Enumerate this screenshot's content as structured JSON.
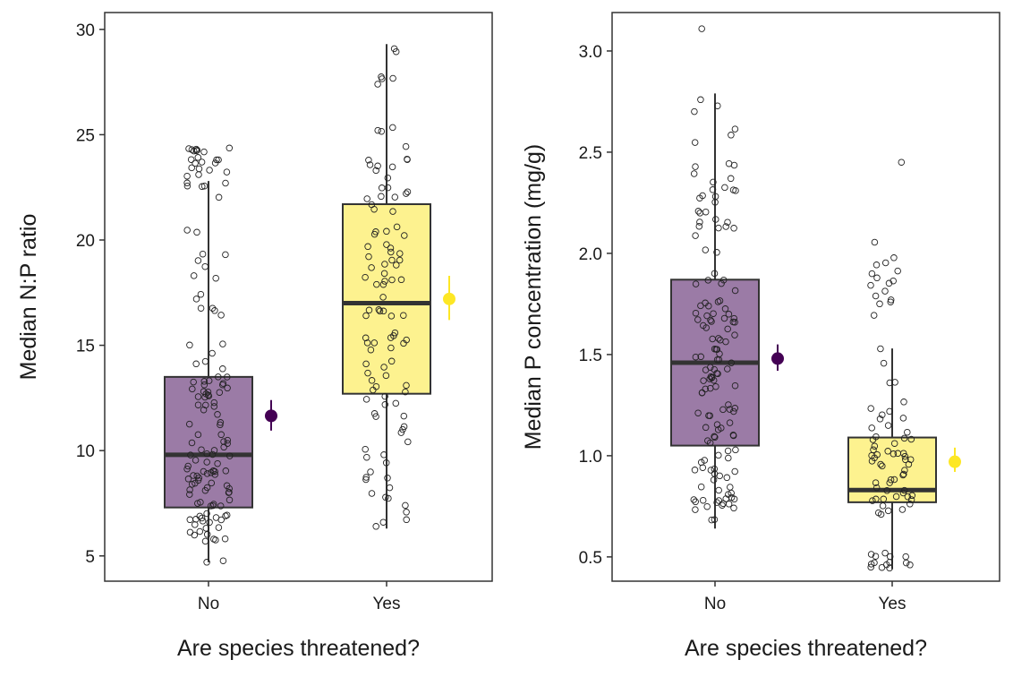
{
  "chart_data": [
    {
      "type": "box",
      "xlabel": "Are species threatened?",
      "ylabel": "Median N:P ratio",
      "ylim": [
        3.8,
        30.8
      ],
      "yticks": [
        5,
        10,
        15,
        20,
        25,
        30
      ],
      "categories": [
        "No",
        "Yes"
      ],
      "groups": [
        {
          "category": "No",
          "color": "#9b7ba6",
          "box": {
            "q1": 7.3,
            "median": 9.8,
            "q3": 13.5,
            "whisker_low": 4.7,
            "whisker_high": 22.8
          },
          "mean": 11.65,
          "ci": [
            10.95,
            12.4
          ],
          "mean_color": "#440154",
          "points": [
            {
              "n": 22,
              "min": 5.6,
              "max": 7.2
            },
            {
              "n": 38,
              "min": 7.3,
              "max": 9.8
            },
            {
              "n": 38,
              "min": 9.8,
              "max": 13.5
            },
            {
              "n": 14,
              "min": 13.5,
              "max": 18.5
            },
            {
              "n": 9,
              "min": 18.5,
              "max": 22.8
            },
            {
              "n": 24,
              "min": 22.5,
              "max": 24.4
            },
            {
              "n": 2,
              "min": 4.7,
              "max": 5.8
            }
          ]
        },
        {
          "category": "Yes",
          "color": "#fdf28f",
          "box": {
            "q1": 12.7,
            "median": 17.0,
            "q3": 21.7,
            "whisker_low": 6.3,
            "whisker_high": 29.3
          },
          "mean": 17.2,
          "ci": [
            16.2,
            18.3
          ],
          "mean_color": "#fde725",
          "points": [
            {
              "n": 14,
              "min": 6.3,
              "max": 9.5
            },
            {
              "n": 14,
              "min": 9.5,
              "max": 12.7
            },
            {
              "n": 27,
              "min": 12.7,
              "max": 17.0
            },
            {
              "n": 27,
              "min": 17.0,
              "max": 21.7
            },
            {
              "n": 16,
              "min": 21.7,
              "max": 24.7
            },
            {
              "n": 3,
              "min": 25.0,
              "max": 25.5
            },
            {
              "n": 6,
              "min": 27.3,
              "max": 29.3
            }
          ]
        }
      ]
    },
    {
      "type": "box",
      "xlabel": "Are species threatened?",
      "ylabel": "Median P concentration (mg/g)",
      "ylim": [
        0.38,
        3.19
      ],
      "yticks": [
        0.5,
        1.0,
        1.5,
        2.0,
        2.5,
        3.0
      ],
      "ytick_labels": [
        "0.5",
        "1.0",
        "1.5",
        "2.0",
        "2.5",
        "3.0"
      ],
      "categories": [
        "No",
        "Yes"
      ],
      "groups": [
        {
          "category": "No",
          "color": "#9b7ba6",
          "box": {
            "q1": 1.05,
            "median": 1.46,
            "q3": 1.87,
            "whisker_low": 0.64,
            "whisker_high": 2.79
          },
          "mean": 1.48,
          "ci": [
            1.42,
            1.55
          ],
          "mean_color": "#440154",
          "points": [
            {
              "n": 14,
              "min": 0.73,
              "max": 0.8
            },
            {
              "n": 20,
              "min": 0.8,
              "max": 1.05
            },
            {
              "n": 38,
              "min": 1.05,
              "max": 1.46
            },
            {
              "n": 38,
              "min": 1.46,
              "max": 1.87
            },
            {
              "n": 28,
              "min": 1.87,
              "max": 2.45
            },
            {
              "n": 6,
              "min": 2.45,
              "max": 2.79
            },
            {
              "n": 1,
              "min": 3.11,
              "max": 3.11
            },
            {
              "n": 2,
              "min": 0.64,
              "max": 0.7
            }
          ]
        },
        {
          "category": "Yes",
          "color": "#fdf28f",
          "box": {
            "q1": 0.77,
            "median": 0.83,
            "q3": 1.09,
            "whisker_low": 0.44,
            "whisker_high": 1.53
          },
          "mean": 0.97,
          "ci": [
            0.92,
            1.04
          ],
          "mean_color": "#fde725",
          "points": [
            {
              "n": 14,
              "min": 0.44,
              "max": 0.52
            },
            {
              "n": 16,
              "min": 0.7,
              "max": 0.83
            },
            {
              "n": 28,
              "min": 0.83,
              "max": 1.09
            },
            {
              "n": 14,
              "min": 1.09,
              "max": 1.53
            },
            {
              "n": 16,
              "min": 1.53,
              "max": 2.08
            },
            {
              "n": 1,
              "min": 2.45,
              "max": 2.45
            }
          ]
        }
      ]
    }
  ]
}
